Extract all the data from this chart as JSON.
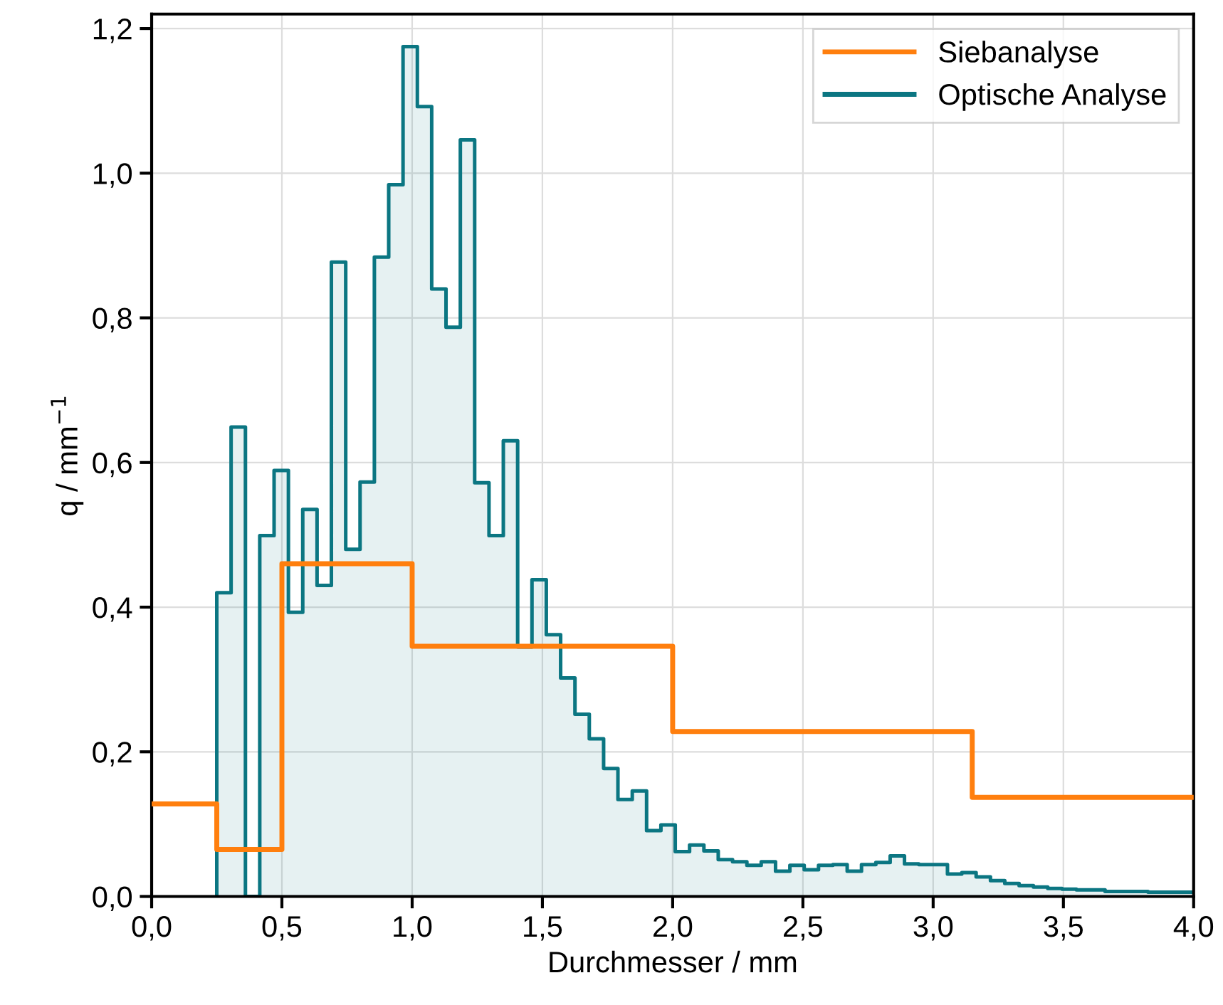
{
  "chart_data": {
    "type": "step",
    "xlabel": "Durchmesser / mm",
    "ylabel": "q / mm$^{−1}$",
    "xlim": [
      0,
      4.0
    ],
    "ylim": [
      0,
      1.22
    ],
    "xticks": [
      {
        "value": 0,
        "label": "0,0"
      },
      {
        "value": 0.5,
        "label": "0,5"
      },
      {
        "value": 1.0,
        "label": "1,0"
      },
      {
        "value": 1.5,
        "label": "1,5"
      },
      {
        "value": 2.0,
        "label": "2,0"
      },
      {
        "value": 2.5,
        "label": "2,5"
      },
      {
        "value": 3.0,
        "label": "3,0"
      },
      {
        "value": 3.5,
        "label": "3,5"
      },
      {
        "value": 4.0,
        "label": "4,0"
      }
    ],
    "yticks": [
      {
        "value": 0,
        "label": "0,0"
      },
      {
        "value": 0.2,
        "label": "0,2"
      },
      {
        "value": 0.4,
        "label": "0,4"
      },
      {
        "value": 0.6,
        "label": "0,6"
      },
      {
        "value": 0.8,
        "label": "0,8"
      },
      {
        "value": 1.0,
        "label": "1,0"
      },
      {
        "value": 1.2,
        "label": "1,2"
      }
    ],
    "grid": true,
    "legend": "top right",
    "series": [
      {
        "name": "Siebanalyse",
        "color": "#ff7f0e",
        "x": [
          0,
          0.25,
          0.5,
          1.0,
          2.0,
          3.15,
          4.0
        ],
        "values": [
          0.128,
          0.065,
          0.46,
          0.346,
          0.228,
          0.137,
          0.137
        ]
      },
      {
        "name": "Optische Analyse",
        "type": "area",
        "color": "#0b7682",
        "x": [
          0.25,
          0.305,
          0.36,
          0.415,
          0.47,
          0.525,
          0.58,
          0.635,
          0.69,
          0.745,
          0.8,
          0.855,
          0.91,
          0.965,
          1.02,
          1.075,
          1.13,
          1.185,
          1.24,
          1.295,
          1.35,
          1.405,
          1.46,
          1.515,
          1.57,
          1.625,
          1.68,
          1.735,
          1.79,
          1.845,
          1.9,
          1.955,
          2.01,
          2.065,
          2.12,
          2.175,
          2.23,
          2.285,
          2.34,
          2.395,
          2.45,
          2.505,
          2.56,
          2.615,
          2.67,
          2.725,
          2.78,
          2.835,
          2.89,
          2.945,
          3.0,
          3.055,
          3.11,
          3.165,
          3.22,
          3.275,
          3.33,
          3.385,
          3.44,
          3.495,
          3.55,
          3.605,
          3.66,
          3.715,
          3.77,
          3.825,
          3.88,
          3.935,
          4.0
        ],
        "values": [
          0.42,
          0.649,
          0.0,
          0.499,
          0.589,
          0.393,
          0.535,
          0.43,
          0.877,
          0.48,
          0.573,
          0.884,
          0.984,
          1.175,
          1.092,
          0.84,
          0.787,
          1.046,
          0.572,
          0.499,
          0.63,
          0.345,
          0.438,
          0.362,
          0.302,
          0.252,
          0.218,
          0.177,
          0.134,
          0.146,
          0.091,
          0.099,
          0.062,
          0.071,
          0.063,
          0.051,
          0.048,
          0.043,
          0.048,
          0.035,
          0.043,
          0.037,
          0.043,
          0.044,
          0.035,
          0.044,
          0.047,
          0.056,
          0.045,
          0.044,
          0.044,
          0.031,
          0.033,
          0.027,
          0.022,
          0.018,
          0.015,
          0.013,
          0.011,
          0.01,
          0.009,
          0.009,
          0.007,
          0.007,
          0.007,
          0.006,
          0.006,
          0.006,
          0.006
        ]
      }
    ]
  }
}
